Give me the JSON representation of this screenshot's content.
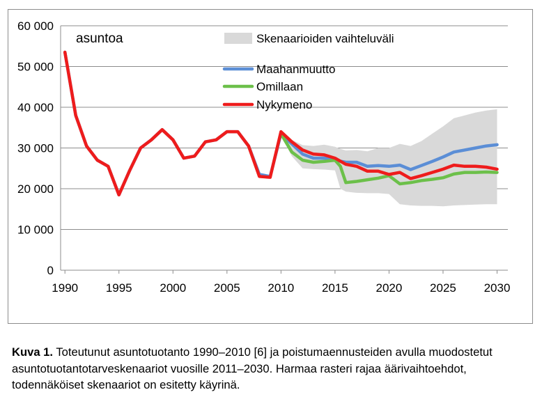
{
  "chart_data": {
    "type": "line",
    "annotation": "asuntoa",
    "y_ticks": [
      "0",
      "10 000",
      "20 000",
      "30 000",
      "40 000",
      "50 000",
      "60 000"
    ],
    "y_tick_values": [
      0,
      10000,
      20000,
      30000,
      40000,
      50000,
      60000
    ],
    "ylim": [
      0,
      60000
    ],
    "x_ticks": [
      "1990",
      "1995",
      "2000",
      "2005",
      "2010",
      "2015",
      "2020",
      "2025",
      "2030"
    ],
    "x_tick_values": [
      1990,
      1995,
      2000,
      2005,
      2010,
      2015,
      2020,
      2025,
      2030
    ],
    "xlim": [
      1989.6,
      2031
    ],
    "grid": "horizontal",
    "legend_position": "top-right",
    "band": {
      "name": "Skenaarioiden vaihteluväli",
      "color": "#d9d9d9",
      "x": [
        2010,
        2011,
        2012,
        2013,
        2014,
        2015,
        2015.5,
        2016,
        2017,
        2018,
        2019,
        2020,
        2021,
        2022,
        2023,
        2024,
        2025,
        2026,
        2027,
        2028,
        2029,
        2030
      ],
      "upper": [
        33500,
        32000,
        30700,
        30500,
        30800,
        30300,
        29800,
        29400,
        29500,
        29200,
        30000,
        30000,
        31000,
        30500,
        31700,
        33500,
        35300,
        37300,
        38000,
        38700,
        39200,
        39500
      ],
      "lower": [
        33000,
        28000,
        25000,
        24800,
        24700,
        24500,
        20000,
        19300,
        19000,
        18900,
        18900,
        18700,
        16200,
        15900,
        15800,
        15800,
        15700,
        15900,
        16000,
        16100,
        16200,
        16200
      ]
    },
    "series": [
      {
        "name": "Maahanmuutto",
        "color": "#5b8ed6",
        "x": [
          1990,
          1991,
          1992,
          1993,
          1994,
          1995,
          1996,
          1997,
          1998,
          1999,
          2000,
          2001,
          2002,
          2003,
          2004,
          2005,
          2006,
          2007,
          2008,
          2009,
          2010,
          2011,
          2012,
          2013,
          2014,
          2015,
          2016,
          2017,
          2018,
          2019,
          2020,
          2021,
          2022,
          2023,
          2024,
          2025,
          2026,
          2027,
          2028,
          2029,
          2030
        ],
        "values": [
          53500,
          38000,
          30500,
          27000,
          25500,
          18500,
          24500,
          30000,
          32000,
          34500,
          32000,
          27500,
          28000,
          31500,
          32000,
          34000,
          34000,
          30500,
          23500,
          23000,
          33500,
          31000,
          28500,
          27500,
          27500,
          27000,
          26500,
          26500,
          25500,
          25700,
          25500,
          25800,
          24700,
          25700,
          26700,
          27800,
          29000,
          29500,
          30000,
          30500,
          30800
        ]
      },
      {
        "name": "Omillaan",
        "color": "#6cc04a",
        "x": [
          2010,
          2011,
          2012,
          2013,
          2014,
          2015,
          2015.5,
          2016,
          2017,
          2018,
          2019,
          2020,
          2021,
          2022,
          2023,
          2024,
          2025,
          2026,
          2027,
          2028,
          2029,
          2030
        ],
        "values": [
          33500,
          29000,
          27000,
          26500,
          26700,
          27000,
          25500,
          21500,
          21800,
          22200,
          22600,
          23200,
          21200,
          21500,
          22000,
          22300,
          22700,
          23600,
          24000,
          24000,
          24100,
          24000
        ]
      },
      {
        "name": "Nykymeno",
        "color": "#ee1c1c",
        "x": [
          1990,
          1991,
          1992,
          1993,
          1994,
          1995,
          1996,
          1997,
          1998,
          1999,
          2000,
          2001,
          2002,
          2003,
          2004,
          2005,
          2006,
          2007,
          2008,
          2009,
          2010,
          2011,
          2012,
          2013,
          2014,
          2015,
          2016,
          2017,
          2018,
          2019,
          2020,
          2021,
          2022,
          2023,
          2024,
          2025,
          2026,
          2027,
          2028,
          2029,
          2030
        ],
        "values": [
          53500,
          38000,
          30500,
          27000,
          25500,
          18500,
          24500,
          30000,
          32000,
          34500,
          32000,
          27500,
          28000,
          31500,
          32000,
          34000,
          34000,
          30500,
          23000,
          22800,
          34000,
          31500,
          29500,
          28500,
          28300,
          27500,
          26000,
          25500,
          24300,
          24300,
          23500,
          24000,
          22500,
          23200,
          24000,
          24800,
          25800,
          25500,
          25500,
          25300,
          24800
        ]
      }
    ]
  },
  "caption": {
    "label": "Kuva 1.",
    "text": " Toteutunut asuntotuotanto 1990–2010 [6] ja poistumaennusteiden avulla muodostetut asuntotuotantotarveskenaariot vuosille 2011–2030. Harmaa rasteri rajaa äärivaihtoehdot, todennäköiset skenaariot on esitetty käyrinä."
  }
}
